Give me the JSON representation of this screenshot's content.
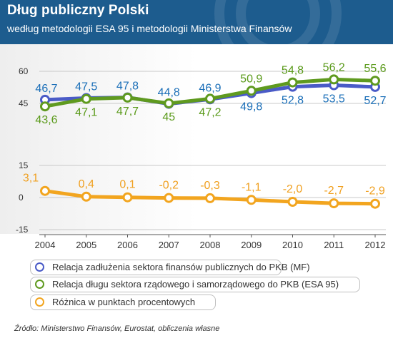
{
  "header": {
    "title": "Dług publiczny Polski",
    "subtitle": "według metodologii ESA 95 i metodologii Ministerstwa Finansów"
  },
  "colors": {
    "header_bg": "#1d5c8e",
    "series_mf": "#4a5bc7",
    "series_esa": "#5f9a1f",
    "series_diff": "#f2a51f",
    "label_mf": "#1b6fb8",
    "label_esa": "#5a9a1a",
    "label_diff": "#f0a020"
  },
  "chart_data": [
    {
      "type": "line",
      "x": [
        "2004",
        "2005",
        "2006",
        "2007",
        "2008",
        "2009",
        "2010",
        "2011",
        "2012"
      ],
      "series": [
        {
          "name": "Relacja zadłużenia sektora finansów publicznych do PKB (MF)",
          "values": [
            46.7,
            47.5,
            47.8,
            44.8,
            46.9,
            49.8,
            52.8,
            53.5,
            52.7
          ],
          "labels": [
            "46,7",
            "47,5",
            "47,8",
            "44,8",
            "46,9",
            "49,8",
            "52,8",
            "53,5",
            "52,7"
          ]
        },
        {
          "name": "Relacja długu sektora rządowego i samorządowego do PKB (ESA 95)",
          "values": [
            43.6,
            47.1,
            47.7,
            45.0,
            47.2,
            50.9,
            54.8,
            56.2,
            55.6
          ],
          "labels": [
            "43,6",
            "47,1",
            "47,7",
            "45",
            "47,2",
            "50,9",
            "54,8",
            "56,2",
            "55,6"
          ]
        }
      ],
      "yticks": [
        45,
        60
      ],
      "ylim": [
        39,
        62
      ]
    },
    {
      "type": "line",
      "x": [
        "2004",
        "2005",
        "2006",
        "2007",
        "2008",
        "2009",
        "2010",
        "2011",
        "2012"
      ],
      "series": [
        {
          "name": "Różnica w punktach procentowych",
          "values": [
            3.1,
            0.4,
            0.1,
            -0.2,
            -0.3,
            -1.1,
            -2.0,
            -2.7,
            -2.9
          ],
          "labels": [
            "3,1",
            "0,4",
            "0,1",
            "-0,2",
            "-0,3",
            "-1,1",
            "-2,0",
            "-2,7",
            "-2,9"
          ]
        }
      ],
      "yticks": [
        -15,
        0,
        15
      ],
      "ylim": [
        -15,
        15
      ]
    }
  ],
  "legend": [
    {
      "label": "Relacja zadłużenia sektora finansów publicznych do PKB (MF)",
      "color": "#4a5bc7"
    },
    {
      "label": "Relacja długu sektora rządowego i samorządowego do PKB (ESA 95)",
      "color": "#5f9a1f"
    },
    {
      "label": "Różnica w punktach procentowych",
      "color": "#f2a51f"
    }
  ],
  "source": "Źródło: Ministerstwo Finansów, Eurostat, obliczenia własne"
}
